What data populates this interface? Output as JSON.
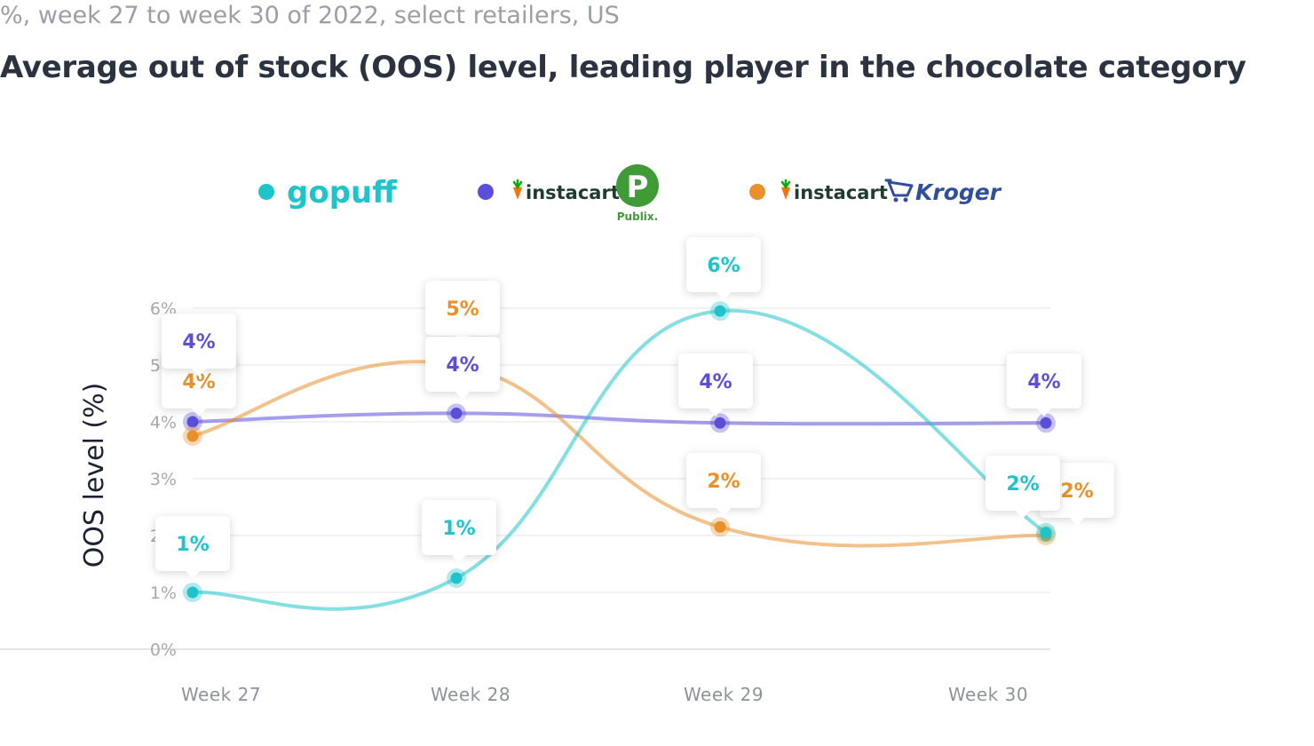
{
  "header": {
    "subtitle": "%, week 27 to week 30 of 2022, select retailers, US",
    "title": "Average out of stock (OOS) level, leading player in the chocolate category"
  },
  "legend": [
    {
      "series_index": 0,
      "brands": [
        {
          "text": "gopuff",
          "icon": "gopuff-logo"
        }
      ]
    },
    {
      "series_index": 1,
      "brands": [
        {
          "text": "instacart",
          "icon": "instacart-carrot-icon"
        },
        {
          "text": "Publix.",
          "icon": "publix-logo",
          "mark": "P"
        }
      ]
    },
    {
      "series_index": 2,
      "brands": [
        {
          "text": "instacart",
          "icon": "instacart-carrot-icon"
        },
        {
          "text": "Kroger",
          "icon": "kroger-logo"
        }
      ]
    }
  ],
  "chart_data": {
    "type": "line",
    "title": "Average out of stock (OOS) level, leading player in the chocolate category",
    "subtitle": "%, week 27 to week 30 of 2022, select retailers, US",
    "xlabel": "",
    "ylabel": "OOS level (%)",
    "categories": [
      "Week 27",
      "Week 28",
      "Week 29",
      "Week 30"
    ],
    "ylim": [
      0,
      6
    ],
    "yticks": [
      "0%",
      "1%",
      "2%",
      "3%",
      "4%",
      "5%",
      "6%"
    ],
    "grid": true,
    "legend_position": "top",
    "series": [
      {
        "color": "#1ec4c9",
        "values": [
          1.0,
          1.25,
          5.95,
          2.05
        ],
        "labels": [
          "1%",
          "1%",
          "6%",
          "2%"
        ]
      },
      {
        "color": "#5b4fd9",
        "values": [
          4.0,
          4.15,
          3.98,
          3.98
        ],
        "labels": [
          "4%",
          "4%",
          "4%",
          "4%"
        ]
      },
      {
        "color": "#e8902a",
        "values": [
          3.75,
          5.0,
          2.15,
          2.0
        ],
        "labels": [
          "4%",
          "5%",
          "2%",
          "2%"
        ]
      }
    ]
  },
  "colors": {
    "gopuff": "#1ec4c9",
    "instacart_publix": "#5b4fd9",
    "instacart_kroger": "#e8902a",
    "instacart_text": "#1f3d2e",
    "instacart_carrot": "#0aad0a",
    "publix_green": "#3f9b35",
    "kroger_blue": "#2f4f9d"
  }
}
